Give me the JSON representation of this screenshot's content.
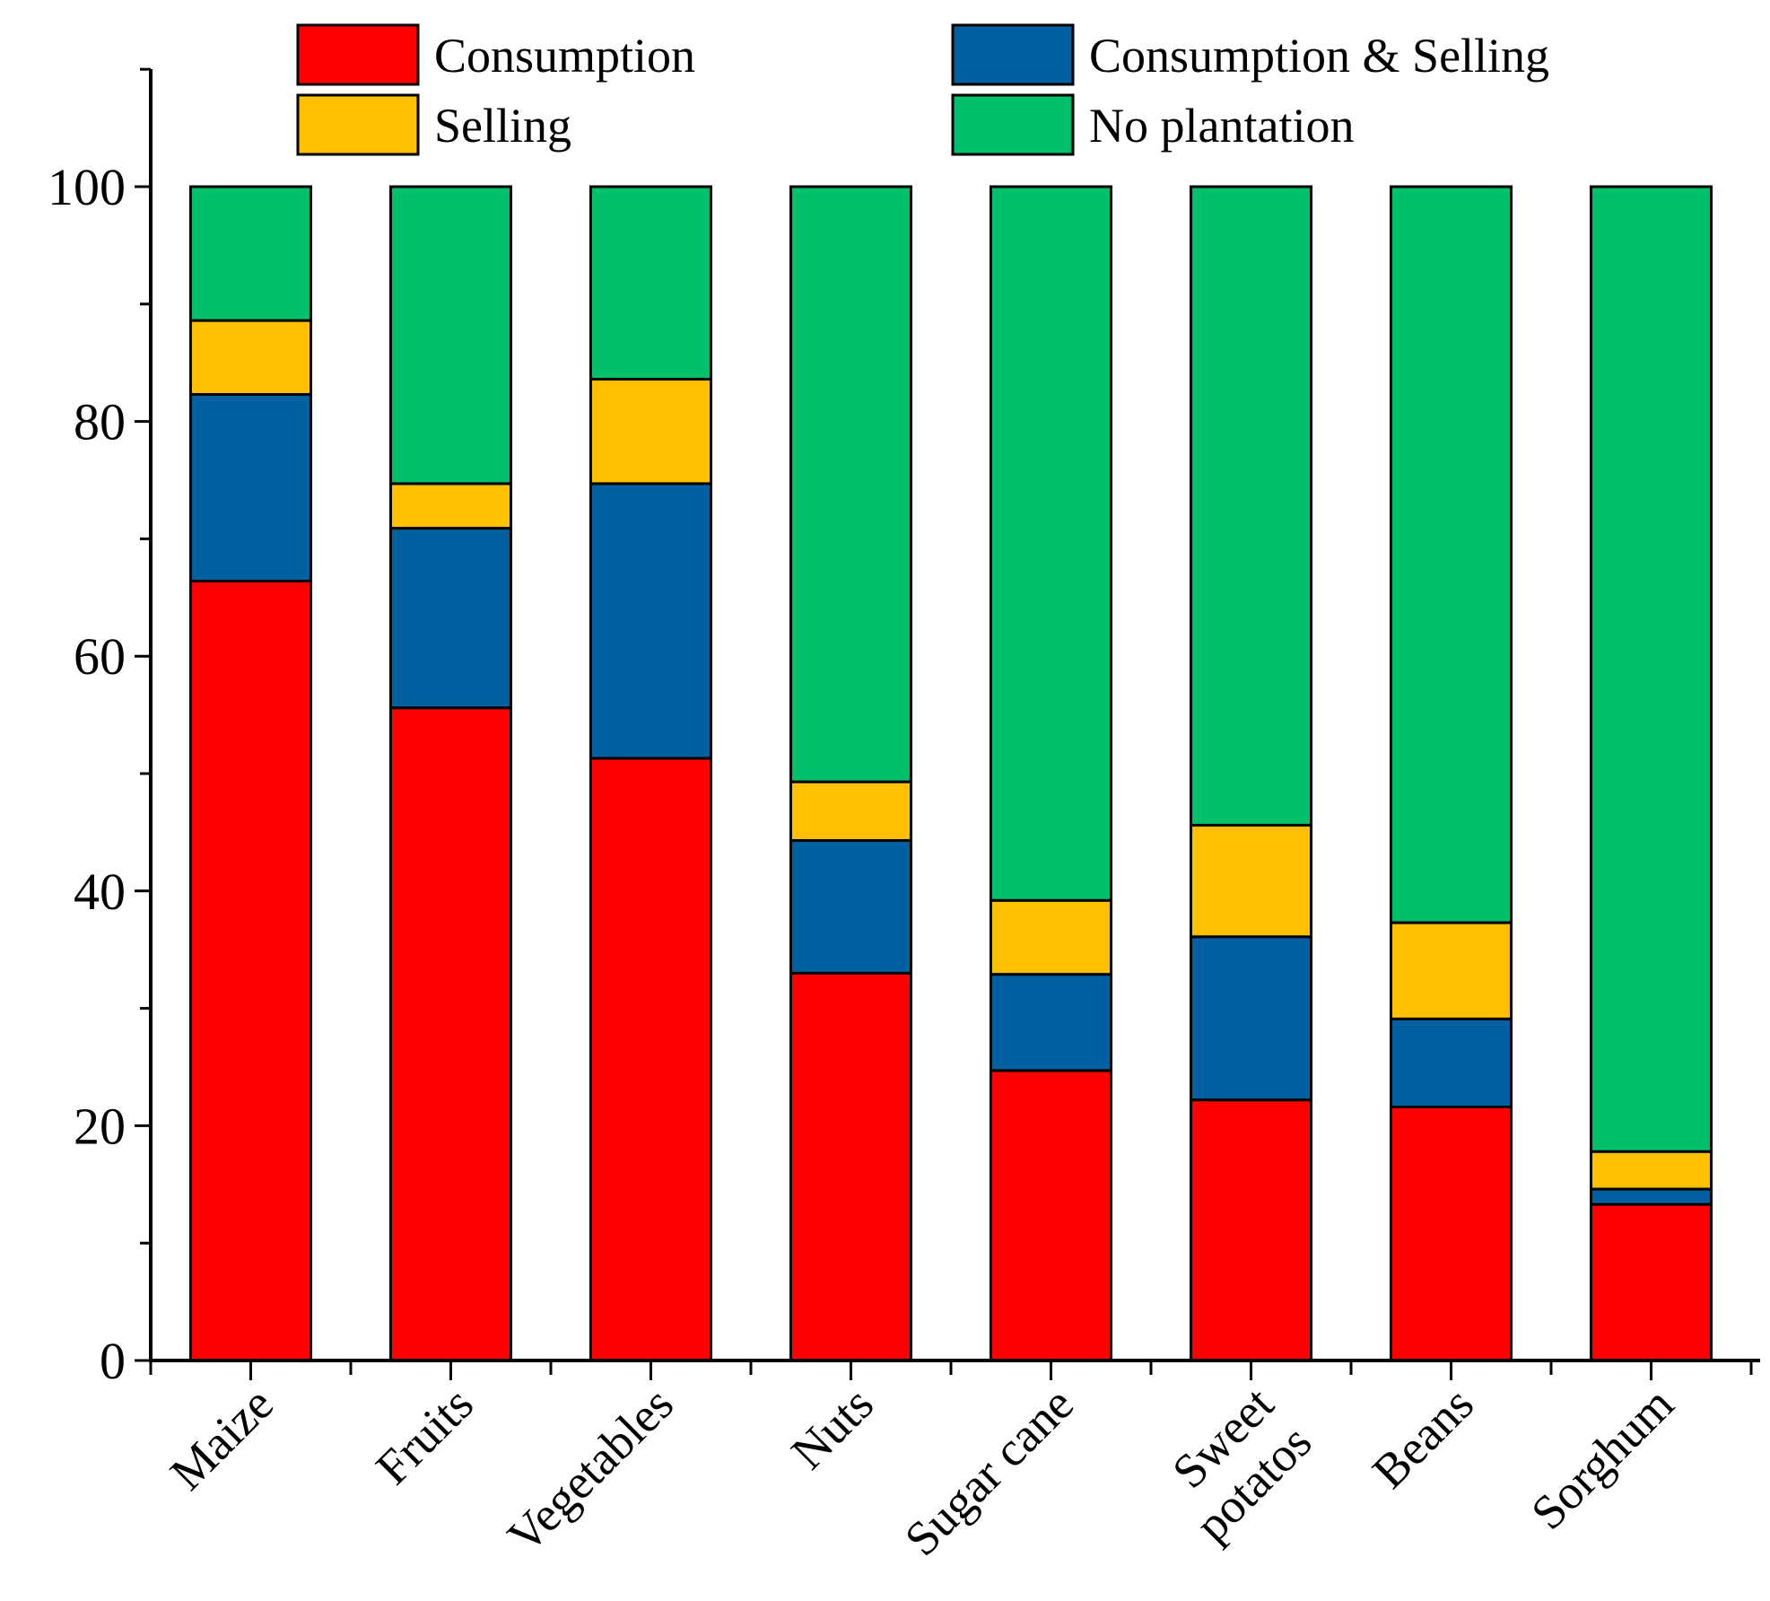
{
  "chart_data": {
    "type": "bar",
    "stacked": true,
    "title": "",
    "xlabel": "",
    "ylabel": "",
    "ylim": [
      0,
      110
    ],
    "yticks": [
      0,
      20,
      40,
      60,
      80,
      100
    ],
    "ytick_labels": [
      "0",
      "20",
      "40",
      "60",
      "80",
      "100"
    ],
    "grid": false,
    "legend_position": "top",
    "categories": [
      "Maize",
      "Fruits",
      "Vegetables",
      "Nuts",
      "Sugar cane",
      "Sweet potatos",
      "Beans",
      "Sorghum"
    ],
    "category_label_lines": [
      [
        "Maize"
      ],
      [
        "Fruits"
      ],
      [
        "Vegetables"
      ],
      [
        "Nuts"
      ],
      [
        "Sugar cane"
      ],
      [
        "Sweet",
        "potatos"
      ],
      [
        "Beans"
      ],
      [
        "Sorghum"
      ]
    ],
    "series": [
      {
        "name": "Consumption",
        "color": "#ff0000",
        "values": [
          66.4,
          55.6,
          51.3,
          33.0,
          24.7,
          22.2,
          21.6,
          13.3
        ]
      },
      {
        "name": "Consumption & Selling",
        "color": "#0060a0",
        "values": [
          15.9,
          15.3,
          23.4,
          11.3,
          8.2,
          13.9,
          7.5,
          1.3
        ]
      },
      {
        "name": "Selling",
        "color": "#ffc000",
        "values": [
          6.3,
          3.8,
          8.9,
          5.0,
          6.3,
          9.5,
          8.2,
          3.2
        ]
      },
      {
        "name": "No plantation",
        "color": "#00c06b",
        "values": [
          11.4,
          25.3,
          16.4,
          50.7,
          60.8,
          54.4,
          62.7,
          82.2
        ]
      }
    ],
    "legend_order": [
      "Consumption",
      "Consumption & Selling",
      "Selling",
      "No plantation"
    ]
  }
}
